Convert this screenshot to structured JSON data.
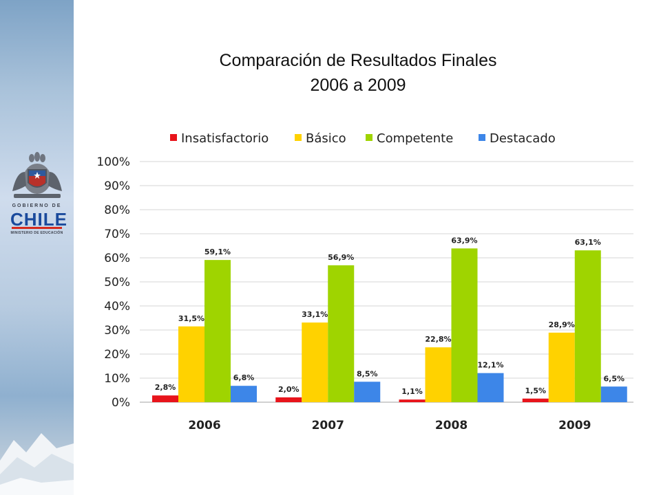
{
  "slide": {
    "title_line1": "Comparación de Resultados Finales",
    "title_line2": "2006 a 2009"
  },
  "logo": {
    "gov_text": "GOBIERNO DE",
    "country_text": "CHILE",
    "ministry_text": "MINISTERIO DE EDUCACIÓN",
    "colors": {
      "blue": "#1a4a9c",
      "red": "#d52b1e"
    }
  },
  "chart_data": {
    "type": "bar",
    "categories": [
      "2006",
      "2007",
      "2008",
      "2009"
    ],
    "series": [
      {
        "name": "Insatisfactorio",
        "color": "#e8141b",
        "values": [
          2.8,
          2.0,
          1.1,
          1.5
        ],
        "labels": [
          "2,8%",
          "2,0%",
          "1,1%",
          "1,5%"
        ]
      },
      {
        "name": "Básico",
        "color": "#ffd200",
        "values": [
          31.5,
          33.1,
          22.8,
          28.9
        ],
        "labels": [
          "31,5%",
          "33,1%",
          "22,8%",
          "28,9%"
        ]
      },
      {
        "name": "Competente",
        "color": "#9fd400",
        "values": [
          59.1,
          56.9,
          63.9,
          63.1
        ],
        "labels": [
          "59,1%",
          "56,9%",
          "63,9%",
          "63,1%"
        ]
      },
      {
        "name": "Destacado",
        "color": "#3d86e8",
        "values": [
          6.8,
          8.5,
          12.1,
          6.5
        ],
        "labels": [
          "6,8%",
          "8,5%",
          "12,1%",
          "6,5%"
        ]
      }
    ],
    "ylim": [
      0,
      100
    ],
    "yticks": [
      "0%",
      "10%",
      "20%",
      "30%",
      "40%",
      "50%",
      "60%",
      "70%",
      "80%",
      "90%",
      "100%"
    ],
    "grid": true,
    "legend_position": "top"
  }
}
